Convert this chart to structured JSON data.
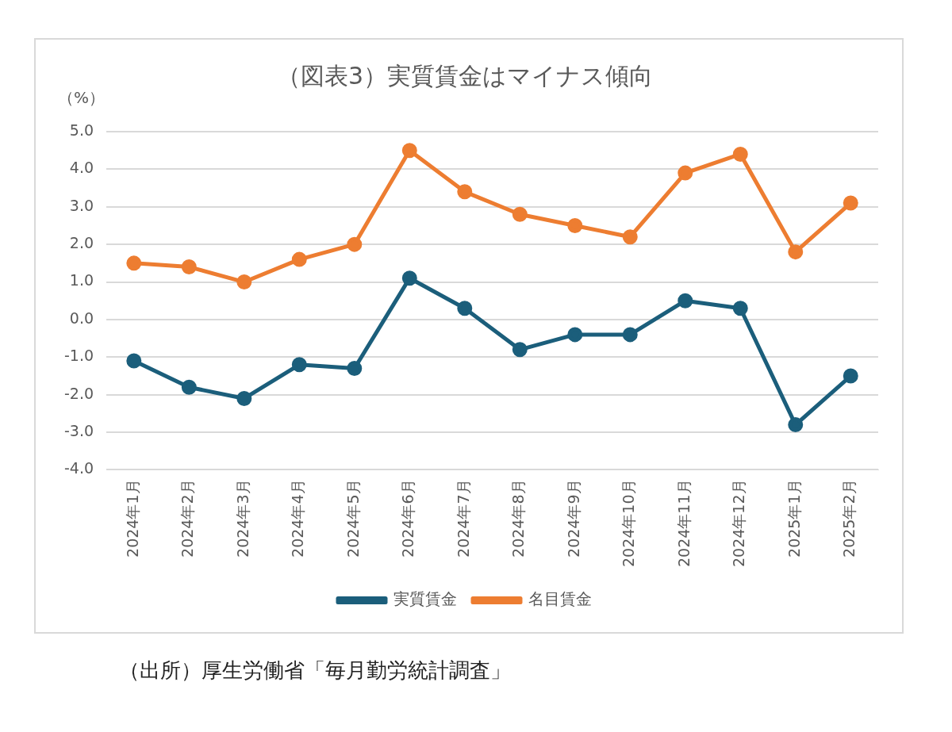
{
  "chart_data": {
    "type": "line",
    "title": "（図表3）実質賃金はマイナス傾向",
    "ylabel": "（%）",
    "categories": [
      "2024年1月",
      "2024年2月",
      "2024年3月",
      "2024年4月",
      "2024年5月",
      "2024年6月",
      "2024年7月",
      "2024年8月",
      "2024年9月",
      "2024年10月",
      "2024年11月",
      "2024年12月",
      "2025年1月",
      "2025年2月"
    ],
    "series": [
      {
        "name": "実質賃金",
        "color": "#1b5e7b",
        "values": [
          -1.1,
          -1.8,
          -2.1,
          -1.2,
          -1.3,
          1.1,
          0.3,
          -0.8,
          -0.4,
          -0.4,
          0.5,
          0.3,
          -2.8,
          -1.5
        ]
      },
      {
        "name": "名目賃金",
        "color": "#ed7d31",
        "values": [
          1.5,
          1.4,
          1.0,
          1.6,
          2.0,
          4.5,
          3.4,
          2.8,
          2.5,
          2.2,
          3.9,
          4.4,
          1.8,
          3.1
        ]
      }
    ],
    "ylim": [
      -4,
      5
    ],
    "yticks": [
      {
        "value": -4,
        "label": "-4.0"
      },
      {
        "value": -3,
        "label": "-3.0"
      },
      {
        "value": -2,
        "label": "-2.0"
      },
      {
        "value": -1,
        "label": "-1.0"
      },
      {
        "value": 0,
        "label": "0.0"
      },
      {
        "value": 1,
        "label": "1.0"
      },
      {
        "value": 2,
        "label": "2.0"
      },
      {
        "value": 3,
        "label": "3.0"
      },
      {
        "value": 4,
        "label": "4.0"
      },
      {
        "value": 5,
        "label": "5.0"
      }
    ],
    "grid": "y",
    "legend": "bottom",
    "marker": "circle",
    "line_style": "solid",
    "annotations": [
      "（出所）厚生労働省「毎月勤労統計調査」"
    ]
  }
}
